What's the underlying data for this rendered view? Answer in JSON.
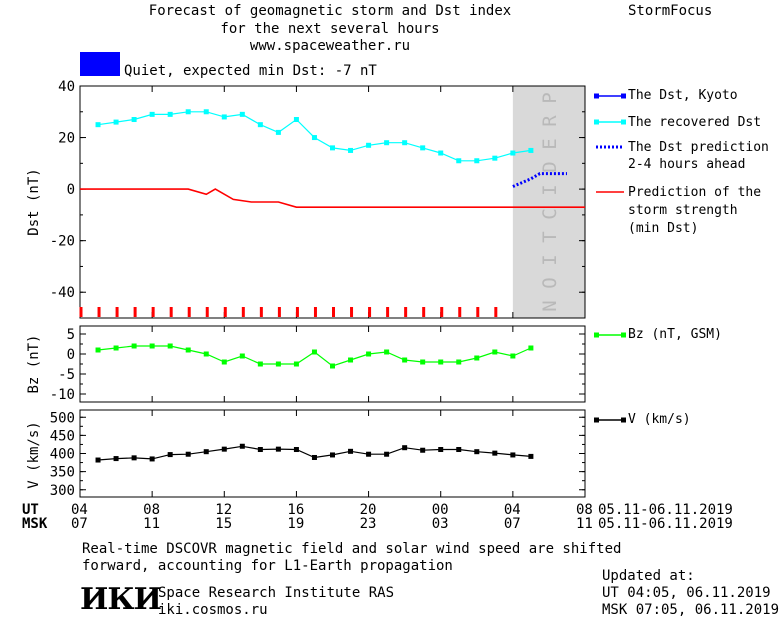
{
  "header": {
    "title_lines": [
      "Forecast of geomagnetic storm and Dst index",
      "for the next several hours",
      "www.spaceweather.ru"
    ],
    "brand": "StormFocus",
    "status_text": "Quiet, expected min Dst: -7 nT",
    "status_color": "#0000ff"
  },
  "prediction_label": "PREDICTION",
  "legend": {
    "dst_kyoto": "The Dst, Kyoto",
    "recovered": "The recovered Dst",
    "prediction_lines": [
      "The Dst prediction",
      "2-4 hours ahead"
    ],
    "strength_lines": [
      "Prediction of the",
      "storm strength",
      "(min Dst)"
    ],
    "bz": "Bz (nT, GSM)",
    "v": "V (km/s)"
  },
  "time_axis": {
    "ut_label": "UT",
    "msk_label": "MSK",
    "ut_ticks": [
      "04",
      "08",
      "12",
      "16",
      "20",
      "00",
      "04",
      "08"
    ],
    "msk_ticks": [
      "07",
      "11",
      "15",
      "19",
      "23",
      "03",
      "07",
      "11"
    ],
    "date_range": "05.11-06.11.2019"
  },
  "footer": {
    "note_lines": [
      "Real-time DSCOVR magnetic field and solar wind speed are shifted",
      "forward, accounting for L1-Earth propagation"
    ],
    "logo_text": "ИКИ",
    "institute": "Space Research Institute RAS",
    "site": "iki.cosmos.ru",
    "updated_label": "Updated at:",
    "updated_ut": "UT  04:05, 06.11.2019",
    "updated_msk": "MSK 07:05, 06.11.2019"
  },
  "chart_data": [
    {
      "type": "line",
      "ylabel": "Dst (nT)",
      "ylim": [
        -50,
        40
      ],
      "yticks": [
        40,
        20,
        0,
        -20,
        -40
      ],
      "xlim_hours": [
        0,
        28
      ],
      "series": [
        {
          "name": "The recovered Dst",
          "color": "#00ffff",
          "x": [
            1,
            2,
            3,
            4,
            5,
            6,
            7,
            8,
            9,
            10,
            11,
            12,
            13,
            14,
            15,
            16,
            17,
            18,
            19,
            20,
            21,
            22,
            23,
            24,
            25,
            26
          ],
          "values": [
            25,
            26,
            27,
            29,
            29,
            30,
            30,
            28,
            29,
            25,
            22,
            27,
            20,
            16,
            15,
            17,
            18,
            18,
            16,
            14,
            11,
            11,
            12,
            14,
            15,
            null
          ]
        },
        {
          "name": "Prediction of the storm strength (min Dst)",
          "color": "#ff0000",
          "x": [
            0,
            6,
            7,
            7.5,
            8.5,
            9.5,
            11,
            12,
            28
          ],
          "values": [
            0,
            0,
            -2,
            0,
            -4,
            -5,
            -5,
            -7,
            -7
          ]
        },
        {
          "name": "The Dst prediction 2-4 hours ahead",
          "color": "#0000ff",
          "x": [
            24,
            25,
            25.5,
            26,
            27
          ],
          "values": [
            1,
            4,
            6,
            6,
            6
          ]
        }
      ]
    },
    {
      "type": "line",
      "ylabel": "Bz (nT)",
      "ylim": [
        -12,
        7
      ],
      "yticks": [
        5,
        0,
        -5,
        -10
      ],
      "series": [
        {
          "name": "Bz (nT, GSM)",
          "color": "#00ff00",
          "x": [
            1,
            2,
            3,
            4,
            5,
            6,
            7,
            8,
            9,
            10,
            11,
            12,
            13,
            14,
            15,
            16,
            17,
            18,
            19,
            20,
            21,
            22,
            23,
            24,
            25
          ],
          "values": [
            1,
            1.5,
            2,
            2,
            2,
            1,
            0,
            -2,
            -0.5,
            -2.5,
            -2.5,
            -2.5,
            0.5,
            -3,
            -1.5,
            0,
            0.5,
            -1.5,
            -2,
            -2,
            -2,
            -1,
            0.5,
            -0.5,
            1.5
          ]
        }
      ]
    },
    {
      "type": "line",
      "ylabel": "V (km/s)",
      "ylim": [
        280,
        520
      ],
      "yticks": [
        500,
        450,
        400,
        350,
        300
      ],
      "series": [
        {
          "name": "V (km/s)",
          "color": "#000000",
          "x": [
            1,
            2,
            3,
            4,
            5,
            6,
            7,
            8,
            9,
            10,
            11,
            12,
            13,
            14,
            15,
            16,
            17,
            18,
            19,
            20,
            21,
            22,
            23,
            24,
            25
          ],
          "values": [
            382,
            386,
            388,
            385,
            397,
            398,
            405,
            412,
            420,
            411,
            412,
            411,
            389,
            396,
            406,
            398,
            398,
            416,
            409,
            411,
            411,
            405,
            401,
            396,
            392
          ]
        }
      ]
    }
  ]
}
